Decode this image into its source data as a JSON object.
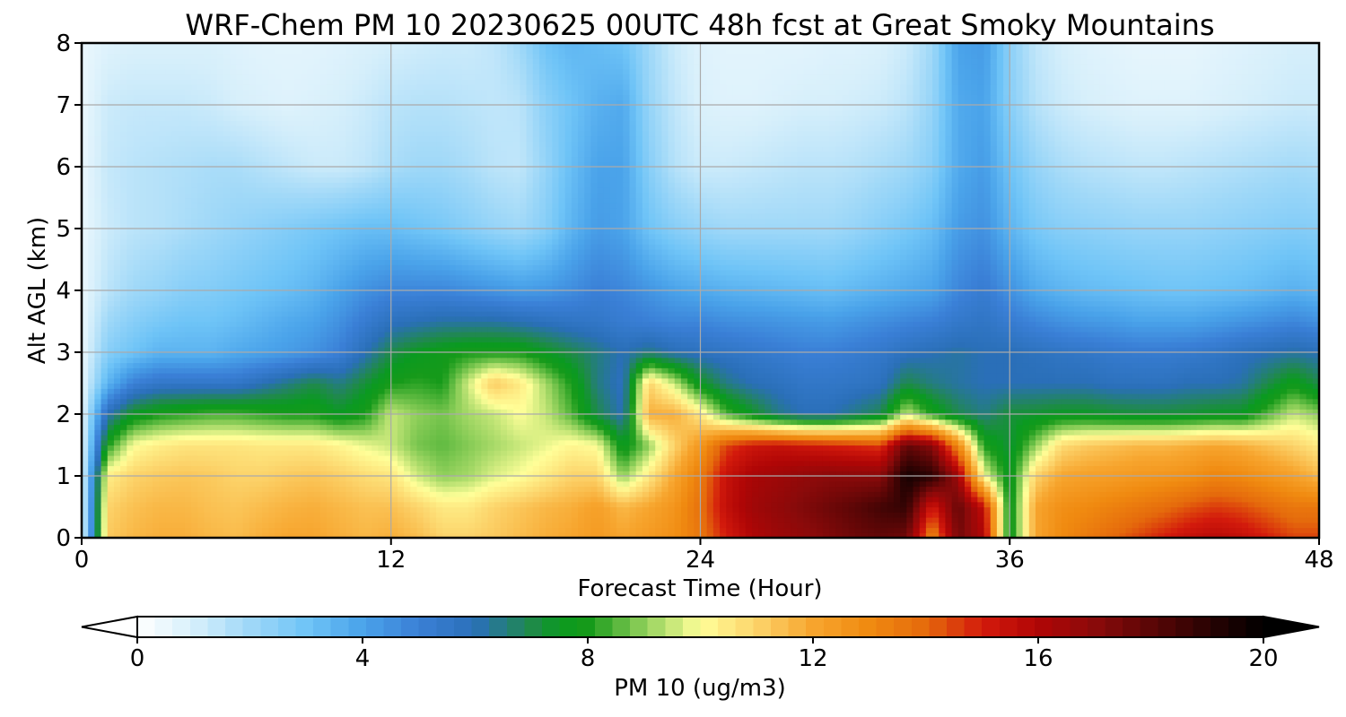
{
  "chart_data": {
    "type": "heatmap",
    "title": "WRF-Chem PM 10  20230625 00UTC 48h fcst at Great Smoky Mountains",
    "xlabel": "Forecast Time (Hour)",
    "ylabel": "Alt AGL (km)",
    "xlim": [
      0,
      48
    ],
    "ylim": [
      0,
      8
    ],
    "xticks": [
      0,
      12,
      24,
      36,
      48
    ],
    "yticks": [
      0,
      1,
      2,
      3,
      4,
      5,
      6,
      7,
      8
    ],
    "grid": true,
    "colorbar": {
      "label": "PM 10  (ug/m3)",
      "range": [
        0,
        20
      ],
      "ticks": [
        0,
        4,
        8,
        12,
        16,
        20
      ],
      "extend": "both",
      "stops": [
        [
          0,
          "#ffffff"
        ],
        [
          1,
          "#d6effb"
        ],
        [
          2,
          "#9fd8f8"
        ],
        [
          3,
          "#6fc4f7"
        ],
        [
          4,
          "#4aa3ea"
        ],
        [
          5,
          "#3a7fd6"
        ],
        [
          6,
          "#2a6fb8"
        ],
        [
          7,
          "#1f8a4a"
        ],
        [
          7.5,
          "#0a9a20"
        ],
        [
          8,
          "#169a1a"
        ],
        [
          9,
          "#8fcf5a"
        ],
        [
          10,
          "#ffff99"
        ],
        [
          11,
          "#fcd36a"
        ],
        [
          12,
          "#f7a52e"
        ],
        [
          13,
          "#f08a10"
        ],
        [
          14,
          "#e56a0c"
        ],
        [
          15,
          "#d31a0c"
        ],
        [
          16,
          "#b00606"
        ],
        [
          17,
          "#8a0a0a"
        ],
        [
          18,
          "#5a0606"
        ],
        [
          19,
          "#2a0303"
        ],
        [
          20,
          "#000000"
        ]
      ]
    },
    "x": [
      0,
      1,
      2,
      3,
      4,
      5,
      6,
      7,
      8,
      9,
      10,
      11,
      12,
      13,
      14,
      15,
      16,
      17,
      18,
      19,
      20,
      21,
      22,
      23,
      24,
      25,
      26,
      27,
      28,
      29,
      30,
      31,
      32,
      33,
      34,
      35,
      36,
      37,
      38,
      39,
      40,
      41,
      42,
      43,
      44,
      45,
      46,
      47,
      48
    ],
    "y": [
      0,
      0.5,
      1,
      1.5,
      2,
      2.5,
      3,
      3.5,
      4,
      5,
      6,
      7,
      8
    ],
    "z": [
      [
        0.5,
        11.2,
        11.6,
        11.8,
        11.8,
        11.6,
        11.5,
        11.8,
        12.0,
        12.0,
        11.8,
        11.6,
        11.8,
        11.5,
        11.0,
        11.0,
        11.2,
        11.5,
        11.8,
        12.0,
        12.4,
        12.0,
        12.4,
        12.8,
        13.6,
        15.0,
        16.0,
        16.5,
        16.8,
        17.2,
        17.6,
        17.8,
        17.5,
        13.0,
        17.5,
        16.0,
        7.5,
        12.0,
        13.0,
        13.5,
        14.0,
        14.5,
        15.0,
        15.5,
        15.8,
        15.5,
        15.0,
        14.5,
        14.5
      ],
      [
        0.5,
        11.0,
        11.4,
        11.6,
        11.6,
        11.4,
        11.3,
        11.5,
        11.7,
        11.8,
        11.6,
        11.4,
        11.4,
        11.0,
        10.5,
        10.5,
        11.0,
        11.3,
        11.6,
        11.8,
        12.2,
        11.6,
        12.0,
        12.6,
        13.8,
        15.5,
        16.4,
        16.8,
        17.2,
        17.6,
        18.0,
        18.5,
        18.8,
        15.0,
        17.8,
        15.5,
        7.5,
        12.0,
        12.8,
        13.0,
        13.3,
        13.6,
        13.9,
        14.3,
        14.6,
        14.4,
        14.0,
        13.6,
        13.6
      ],
      [
        0.5,
        10.4,
        11.0,
        11.2,
        11.3,
        11.2,
        11.0,
        11.0,
        11.2,
        11.3,
        11.1,
        10.8,
        10.6,
        9.6,
        9.0,
        9.2,
        9.7,
        10.0,
        10.5,
        11.0,
        11.0,
        9.0,
        10.5,
        12.0,
        13.5,
        15.4,
        16.2,
        16.5,
        16.8,
        17.0,
        17.0,
        17.0,
        19.5,
        19.0,
        16.5,
        10.0,
        7.5,
        11.0,
        12.0,
        12.2,
        12.3,
        12.5,
        12.6,
        12.8,
        13.2,
        13.0,
        12.6,
        12.2,
        11.6
      ],
      [
        0.5,
        8.0,
        10.0,
        10.4,
        10.6,
        10.6,
        10.6,
        10.5,
        10.5,
        10.5,
        10.2,
        9.8,
        9.5,
        8.8,
        8.6,
        8.9,
        9.2,
        9.5,
        9.8,
        10.2,
        10.0,
        7.5,
        9.0,
        11.0,
        12.5,
        14.5,
        15.2,
        15.4,
        15.2,
        15.0,
        14.8,
        14.6,
        17.8,
        17.0,
        13.0,
        8.0,
        7.2,
        9.0,
        10.8,
        11.2,
        11.4,
        11.6,
        11.6,
        11.8,
        12.0,
        11.8,
        11.4,
        11.0,
        10.5
      ],
      [
        0.5,
        6.0,
        7.5,
        8.0,
        8.2,
        8.4,
        8.4,
        8.2,
        8.0,
        8.0,
        7.5,
        8.0,
        9.5,
        9.0,
        8.8,
        9.2,
        9.5,
        10.0,
        9.5,
        8.5,
        7.0,
        6.0,
        11.8,
        11.8,
        10.5,
        8.5,
        7.5,
        6.5,
        6.0,
        6.0,
        6.5,
        7.0,
        9.5,
        8.0,
        7.0,
        6.5,
        7.2,
        7.3,
        7.5,
        7.5,
        7.3,
        7.2,
        7.2,
        7.3,
        7.5,
        7.5,
        8.5,
        9.5,
        9.0
      ],
      [
        0.5,
        3.5,
        5.0,
        5.5,
        5.5,
        5.5,
        5.5,
        6.0,
        6.5,
        7.0,
        6.5,
        7.2,
        8.0,
        8.2,
        8.0,
        9.6,
        11.2,
        10.5,
        9.2,
        8.0,
        6.5,
        5.8,
        11.0,
        9.5,
        7.5,
        6.5,
        6.0,
        5.8,
        5.5,
        5.5,
        5.6,
        5.8,
        7.0,
        6.5,
        6.2,
        6.0,
        6.0,
        6.0,
        6.0,
        6.0,
        5.8,
        5.8,
        5.8,
        6.0,
        6.0,
        6.2,
        7.0,
        7.8,
        7.0
      ],
      [
        0.5,
        2.5,
        3.0,
        3.5,
        3.5,
        3.5,
        3.8,
        4.0,
        4.2,
        4.5,
        5.0,
        6.0,
        7.0,
        7.5,
        7.8,
        8.0,
        8.0,
        8.0,
        7.5,
        7.0,
        6.5,
        6.0,
        6.5,
        6.0,
        5.8,
        5.6,
        5.4,
        5.2,
        5.0,
        5.0,
        5.2,
        5.4,
        5.8,
        6.0,
        6.2,
        6.0,
        6.0,
        5.8,
        5.6,
        5.5,
        5.3,
        5.2,
        5.2,
        5.3,
        5.5,
        5.8,
        6.0,
        6.2,
        6.0
      ],
      [
        0.5,
        2.0,
        2.5,
        2.8,
        3.0,
        3.0,
        3.2,
        3.5,
        3.8,
        4.0,
        4.5,
        5.2,
        5.8,
        6.0,
        6.2,
        6.2,
        6.2,
        6.0,
        5.8,
        5.6,
        5.5,
        5.2,
        5.0,
        4.8,
        4.8,
        4.6,
        4.5,
        4.4,
        4.3,
        4.2,
        4.4,
        4.6,
        4.8,
        5.0,
        5.4,
        5.6,
        5.2,
        4.8,
        4.5,
        4.3,
        4.2,
        4.0,
        4.0,
        4.0,
        4.2,
        4.4,
        4.6,
        4.8,
        4.5
      ],
      [
        0.5,
        1.5,
        2.0,
        2.2,
        2.5,
        2.6,
        2.8,
        3.0,
        3.2,
        3.5,
        4.0,
        4.5,
        4.8,
        4.8,
        4.8,
        4.6,
        4.4,
        4.2,
        4.3,
        4.6,
        5.0,
        4.8,
        4.4,
        4.0,
        3.8,
        3.6,
        3.5,
        3.4,
        3.3,
        3.2,
        3.4,
        3.6,
        3.8,
        4.0,
        4.8,
        5.2,
        4.5,
        3.8,
        3.5,
        3.3,
        3.2,
        3.1,
        3.0,
        3.0,
        3.1,
        3.2,
        3.4,
        3.6,
        3.4
      ],
      [
        0.5,
        1.2,
        1.5,
        1.6,
        1.8,
        2.0,
        2.2,
        2.4,
        2.6,
        2.8,
        3.0,
        3.2,
        3.2,
        3.0,
        2.8,
        2.5,
        2.2,
        2.0,
        2.5,
        3.5,
        4.2,
        4.0,
        3.0,
        2.5,
        2.2,
        2.0,
        2.0,
        2.0,
        2.0,
        2.0,
        2.2,
        2.5,
        2.8,
        3.2,
        4.2,
        4.5,
        3.5,
        2.8,
        2.5,
        2.4,
        2.3,
        2.2,
        2.2,
        2.2,
        2.3,
        2.4,
        2.5,
        2.6,
        2.5
      ],
      [
        0.5,
        1.3,
        1.5,
        1.6,
        1.7,
        1.8,
        1.8,
        1.6,
        1.4,
        1.2,
        1.2,
        1.4,
        1.8,
        2.0,
        2.0,
        1.8,
        1.5,
        1.4,
        2.2,
        3.2,
        4.0,
        4.0,
        2.5,
        1.6,
        1.2,
        1.2,
        1.3,
        1.4,
        1.5,
        1.5,
        1.6,
        1.8,
        2.0,
        2.5,
        3.8,
        4.2,
        3.0,
        2.2,
        1.8,
        1.6,
        1.5,
        1.4,
        1.4,
        1.5,
        1.6,
        1.7,
        1.8,
        1.9,
        1.8
      ],
      [
        0.5,
        1.2,
        1.3,
        1.3,
        1.3,
        1.2,
        1.0,
        0.9,
        0.8,
        0.9,
        1.0,
        1.2,
        1.5,
        1.6,
        1.6,
        1.5,
        1.4,
        1.5,
        2.4,
        3.0,
        3.6,
        3.8,
        2.2,
        1.4,
        0.9,
        0.8,
        0.8,
        0.9,
        1.0,
        1.0,
        1.1,
        1.2,
        1.5,
        2.2,
        3.8,
        4.0,
        2.5,
        1.6,
        1.2,
        1.0,
        0.9,
        0.8,
        0.8,
        0.8,
        0.9,
        1.0,
        1.1,
        1.2,
        1.2
      ],
      [
        0.5,
        0.8,
        0.9,
        0.9,
        0.9,
        0.9,
        0.8,
        0.7,
        0.7,
        0.7,
        0.8,
        0.9,
        1.0,
        1.1,
        1.2,
        1.2,
        1.4,
        2.0,
        3.0,
        3.4,
        3.2,
        3.0,
        2.0,
        1.2,
        0.8,
        0.7,
        0.7,
        0.7,
        0.7,
        0.8,
        0.8,
        0.9,
        1.2,
        2.0,
        4.0,
        4.2,
        2.4,
        1.4,
        1.0,
        0.8,
        0.7,
        0.6,
        0.6,
        0.6,
        0.7,
        0.8,
        0.9,
        1.0,
        1.0
      ]
    ]
  }
}
